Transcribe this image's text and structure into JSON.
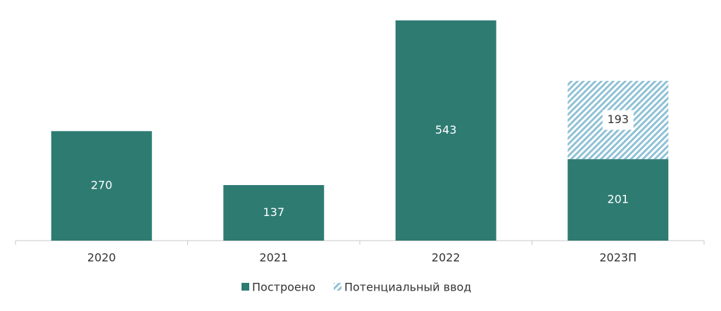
{
  "chart_data": {
    "type": "stacked_bar",
    "categories": [
      "2020",
      "2021",
      "2022",
      "2023П"
    ],
    "series": [
      {
        "name": "Построено",
        "color": "#2e7b72",
        "values": [
          270,
          137,
          543,
          201
        ]
      },
      {
        "name": "Потенциальный ввод",
        "color": "#8fc1d6",
        "pattern": "hatch",
        "values": [
          null,
          null,
          null,
          193
        ]
      }
    ],
    "legend": "bottom"
  }
}
